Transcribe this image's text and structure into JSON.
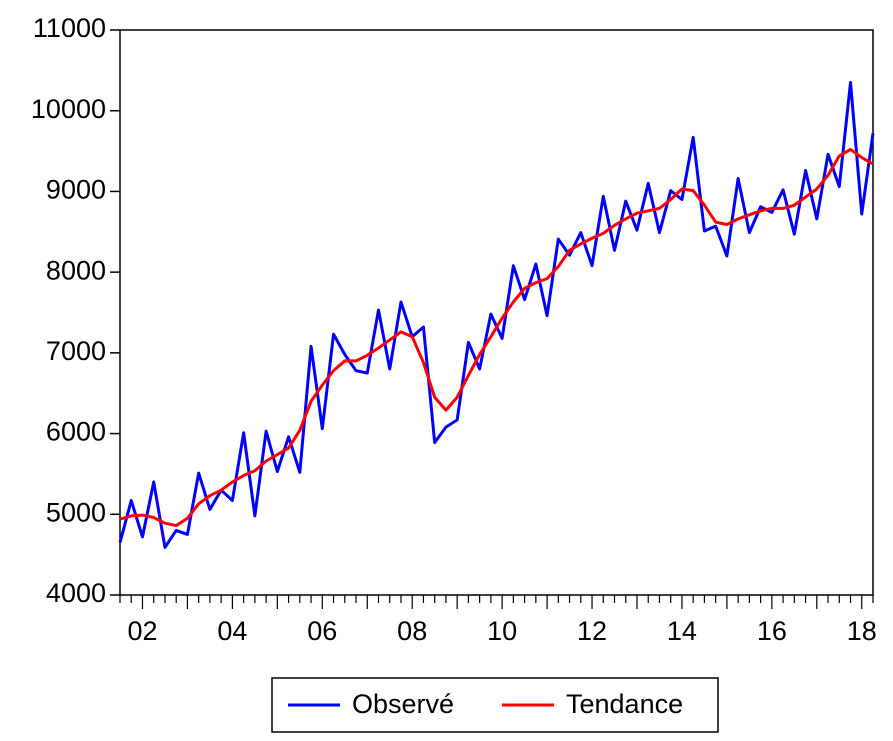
{
  "chart_data": {
    "type": "line",
    "categories": [
      null,
      null,
      "02",
      null,
      null,
      null,
      null,
      null,
      null,
      null,
      "04",
      null,
      null,
      null,
      null,
      null,
      null,
      null,
      "06",
      null,
      null,
      null,
      null,
      null,
      null,
      null,
      "08",
      null,
      null,
      null,
      null,
      null,
      null,
      null,
      "10",
      null,
      null,
      null,
      null,
      null,
      null,
      null,
      "12",
      null,
      null,
      null,
      null,
      null,
      null,
      null,
      "14",
      null,
      null,
      null,
      null,
      null,
      null,
      null,
      "16",
      null,
      null,
      null,
      null,
      null,
      null,
      null,
      "18",
      null
    ],
    "series": [
      {
        "name": "Observé",
        "color": "#0000ff",
        "values": [
          4650,
          5170,
          4720,
          5400,
          4590,
          4800,
          4750,
          5510,
          5060,
          5300,
          5170,
          6010,
          4980,
          6030,
          5530,
          5960,
          5520,
          7080,
          6060,
          7230,
          6980,
          6780,
          6750,
          7530,
          6800,
          7630,
          7200,
          7320,
          5890,
          6080,
          6170,
          7130,
          6800,
          7480,
          7180,
          8080,
          7660,
          8100,
          7460,
          8410,
          8210,
          8490,
          8080,
          8940,
          8270,
          8880,
          8520,
          9100,
          8490,
          9010,
          8900,
          9670,
          8510,
          8570,
          8200,
          9160,
          8490,
          8810,
          8740,
          9020,
          8470,
          9260,
          8660,
          9460,
          9060,
          10350,
          8720,
          9720
        ]
      },
      {
        "name": "Tendance",
        "color": "#ff0000",
        "values": [
          4940,
          4980,
          4990,
          4960,
          4890,
          4860,
          4950,
          5130,
          5230,
          5300,
          5400,
          5480,
          5540,
          5660,
          5740,
          5820,
          6040,
          6400,
          6600,
          6780,
          6900,
          6900,
          6970,
          7060,
          7160,
          7260,
          7200,
          6880,
          6450,
          6290,
          6450,
          6720,
          6980,
          7200,
          7430,
          7630,
          7800,
          7870,
          7920,
          8070,
          8270,
          8350,
          8420,
          8480,
          8580,
          8660,
          8730,
          8760,
          8790,
          8900,
          9030,
          9010,
          8830,
          8620,
          8590,
          8660,
          8710,
          8760,
          8790,
          8790,
          8830,
          8930,
          9030,
          9200,
          9440,
          9520,
          9420,
          9340
        ]
      }
    ],
    "ylim": [
      4000,
      11000
    ],
    "yticks": [
      4000,
      5000,
      6000,
      7000,
      8000,
      9000,
      10000,
      11000
    ],
    "legend": "bottom"
  }
}
